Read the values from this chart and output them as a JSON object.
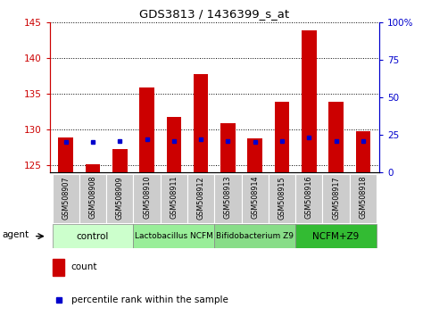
{
  "title": "GDS3813 / 1436399_s_at",
  "samples": [
    "GSM508907",
    "GSM508908",
    "GSM508909",
    "GSM508910",
    "GSM508911",
    "GSM508912",
    "GSM508913",
    "GSM508914",
    "GSM508915",
    "GSM508916",
    "GSM508917",
    "GSM508918"
  ],
  "count_values": [
    128.8,
    125.1,
    127.2,
    135.8,
    131.7,
    137.7,
    130.9,
    128.7,
    133.8,
    143.8,
    133.8,
    129.7
  ],
  "percentile_values": [
    20,
    20,
    21,
    22,
    21,
    22,
    21,
    20,
    21,
    23,
    21,
    21
  ],
  "ylim_left": [
    124,
    145
  ],
  "ylim_right": [
    0,
    100
  ],
  "yticks_left": [
    125,
    130,
    135,
    140,
    145
  ],
  "yticks_right": [
    0,
    25,
    50,
    75,
    100
  ],
  "bar_color": "#cc0000",
  "dot_color": "#0000cc",
  "groups": [
    {
      "label": "control",
      "start": 0,
      "end": 3,
      "color": "#ccffcc"
    },
    {
      "label": "Lactobacillus NCFM",
      "start": 3,
      "end": 6,
      "color": "#99ee99"
    },
    {
      "label": "Bifidobacterium Z9",
      "start": 6,
      "end": 9,
      "color": "#88dd88"
    },
    {
      "label": "NCFM+Z9",
      "start": 9,
      "end": 12,
      "color": "#33bb33"
    }
  ],
  "left_axis_color": "#cc0000",
  "right_axis_color": "#0000cc",
  "legend_count_label": "count",
  "legend_percentile_label": "percentile rank within the sample",
  "agent_label": "agent",
  "bar_width": 0.55
}
